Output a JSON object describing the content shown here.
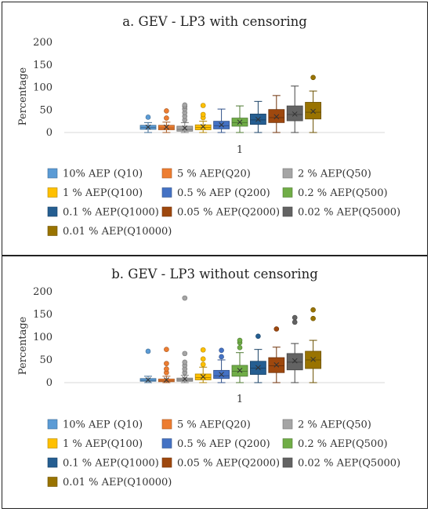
{
  "colors": {
    "Q10": "#5b9bd5",
    "Q20": "#ed7d31",
    "Q50": "#a5a5a5",
    "Q100": "#ffc000",
    "Q200": "#4472c4",
    "Q500": "#70ad47",
    "Q1000": "#255e91",
    "Q2000": "#9e480e",
    "Q5000": "#636363",
    "Q10000": "#997300"
  },
  "chart_data": [
    {
      "type": "box",
      "title": "a. GEV - LP3 with censoring",
      "ylabel": "Percentage",
      "ylim": [
        0,
        200
      ],
      "yticks": [
        0,
        50,
        100,
        150,
        200
      ],
      "categories": [
        "1"
      ],
      "grid": false,
      "legend_position": "bottom",
      "series": [
        {
          "key": "Q10",
          "name": "10% AEP (Q10)",
          "min": 0,
          "q1": 7,
          "median": 11,
          "mean": 12,
          "q3": 16,
          "max": 22,
          "outliers": [
            34
          ]
        },
        {
          "key": "Q20",
          "name": "5 % AEP(Q20)",
          "min": 0,
          "q1": 6,
          "median": 10,
          "mean": 12,
          "q3": 16,
          "max": 23,
          "outliers": [
            32,
            48
          ]
        },
        {
          "key": "Q50",
          "name": "2 % AEP(Q50)",
          "min": 0,
          "q1": 3,
          "median": 7,
          "mean": 10,
          "q3": 14,
          "max": 22,
          "outliers": [
            28,
            36,
            44,
            52,
            58,
            61
          ]
        },
        {
          "key": "Q100",
          "name": "1 % AEP(Q100)",
          "min": 0,
          "q1": 6,
          "median": 11,
          "mean": 13,
          "q3": 17,
          "max": 25,
          "outliers": [
            33,
            40,
            60
          ]
        },
        {
          "key": "Q200",
          "name": "0.5 % AEP (Q200)",
          "min": 0,
          "q1": 8,
          "median": 15,
          "mean": 17,
          "q3": 25,
          "max": 52,
          "outliers": []
        },
        {
          "key": "Q500",
          "name": "0.2 % AEP(Q500)",
          "min": 0,
          "q1": 14,
          "median": 22,
          "mean": 23,
          "q3": 32,
          "max": 59,
          "outliers": []
        },
        {
          "key": "Q1000",
          "name": "0.1 % AEP(Q1000)",
          "min": 0,
          "q1": 18,
          "median": 28,
          "mean": 29,
          "q3": 41,
          "max": 69,
          "outliers": []
        },
        {
          "key": "Q2000",
          "name": "0.05 % AEP(Q2000)",
          "min": 0,
          "q1": 22,
          "median": 33,
          "mean": 35,
          "q3": 51,
          "max": 82,
          "outliers": []
        },
        {
          "key": "Q5000",
          "name": "0.02 % AEP(Q5000)",
          "min": 0,
          "q1": 26,
          "median": 40,
          "mean": 41,
          "q3": 59,
          "max": 103,
          "outliers": []
        },
        {
          "key": "Q10000",
          "name": "0.01 % AEP(Q10000)",
          "min": 0,
          "q1": 30,
          "median": 45,
          "mean": 47,
          "q3": 67,
          "max": 92,
          "outliers": [
            122
          ]
        }
      ]
    },
    {
      "type": "box",
      "title": "b. GEV - LP3 without censoring",
      "ylabel": "Percentage",
      "ylim": [
        0,
        200
      ],
      "yticks": [
        0,
        50,
        100,
        150,
        200
      ],
      "categories": [
        "1"
      ],
      "grid": false,
      "legend_position": "bottom",
      "series": [
        {
          "key": "Q10",
          "name": "10% AEP (Q10)",
          "min": 0,
          "q1": 3,
          "median": 5,
          "mean": 6,
          "q3": 9,
          "max": 14,
          "outliers": [
            69
          ]
        },
        {
          "key": "Q20",
          "name": "5 % AEP(Q20)",
          "min": 0,
          "q1": 2,
          "median": 4,
          "mean": 6,
          "q3": 8,
          "max": 14,
          "outliers": [
            22,
            30,
            42,
            73
          ]
        },
        {
          "key": "Q50",
          "name": "2 % AEP(Q50)",
          "min": 0,
          "q1": 3,
          "median": 6,
          "mean": 8,
          "q3": 10,
          "max": 16,
          "outliers": [
            22,
            30,
            38,
            45,
            64,
            186
          ]
        },
        {
          "key": "Q100",
          "name": "1 % AEP(Q100)",
          "min": 0,
          "q1": 6,
          "median": 11,
          "mean": 13,
          "q3": 19,
          "max": 34,
          "outliers": [
            40,
            52,
            72
          ]
        },
        {
          "key": "Q200",
          "name": "0.5 % AEP (Q200)",
          "min": 0,
          "q1": 9,
          "median": 15,
          "mean": 18,
          "q3": 27,
          "max": 50,
          "outliers": [
            57,
            71
          ]
        },
        {
          "key": "Q500",
          "name": "0.2 % AEP(Q500)",
          "min": 0,
          "q1": 14,
          "median": 25,
          "mean": 27,
          "q3": 38,
          "max": 66,
          "outliers": [
            77,
            88,
            93
          ]
        },
        {
          "key": "Q1000",
          "name": "0.1 % AEP(Q1000)",
          "min": 0,
          "q1": 18,
          "median": 32,
          "mean": 33,
          "q3": 47,
          "max": 73,
          "outliers": [
            102
          ]
        },
        {
          "key": "Q2000",
          "name": "0.05 % AEP(Q2000)",
          "min": 0,
          "q1": 22,
          "median": 37,
          "mean": 39,
          "q3": 55,
          "max": 78,
          "outliers": [
            118
          ]
        },
        {
          "key": "Q5000",
          "name": "0.02 % AEP(Q5000)",
          "min": 0,
          "q1": 28,
          "median": 45,
          "mean": 48,
          "q3": 64,
          "max": 86,
          "outliers": [
            133,
            143
          ]
        },
        {
          "key": "Q10000",
          "name": "0.01 % AEP(Q10000)",
          "min": 0,
          "q1": 31,
          "median": 50,
          "mean": 51,
          "q3": 69,
          "max": 93,
          "outliers": [
            141,
            160
          ]
        }
      ]
    }
  ]
}
